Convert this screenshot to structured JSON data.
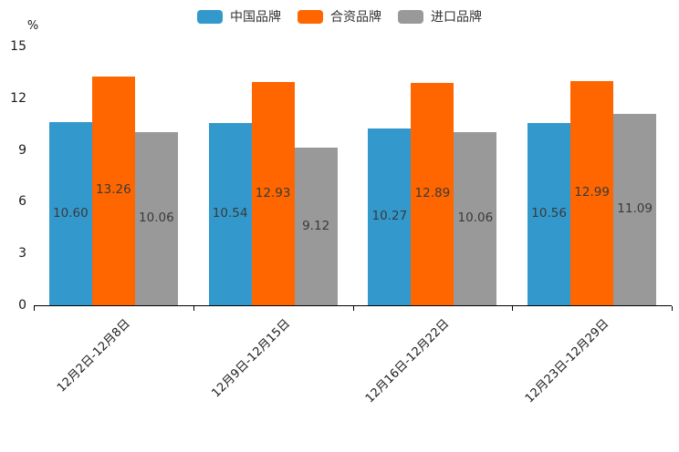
{
  "chart_data": {
    "type": "bar",
    "title": "",
    "ylabel": "%",
    "xlabel": "",
    "ylim": [
      0,
      15
    ],
    "yticks": [
      0,
      3,
      6,
      9,
      12,
      15
    ],
    "grid": false,
    "legend_position": "top-center",
    "value_labels": "centered inside bars, two decimals",
    "categories": [
      "12月2日-12月8日",
      "12月9日-12月15日",
      "12月16日-12月22日",
      "12月23日-12月29日"
    ],
    "series": [
      {
        "name": "中国品牌",
        "color": "#3399CC",
        "values": [
          10.6,
          10.54,
          10.27,
          10.56
        ]
      },
      {
        "name": "合资品牌",
        "color": "#FF6600",
        "values": [
          13.26,
          12.93,
          12.89,
          12.99
        ]
      },
      {
        "name": "进口品牌",
        "color": "#999999",
        "values": [
          10.06,
          9.12,
          10.06,
          11.09
        ]
      }
    ]
  },
  "colors": {
    "axis": "#000000",
    "tick_label": "#1a1a1a",
    "value_label": "#3a3a3a",
    "background": "#ffffff"
  }
}
